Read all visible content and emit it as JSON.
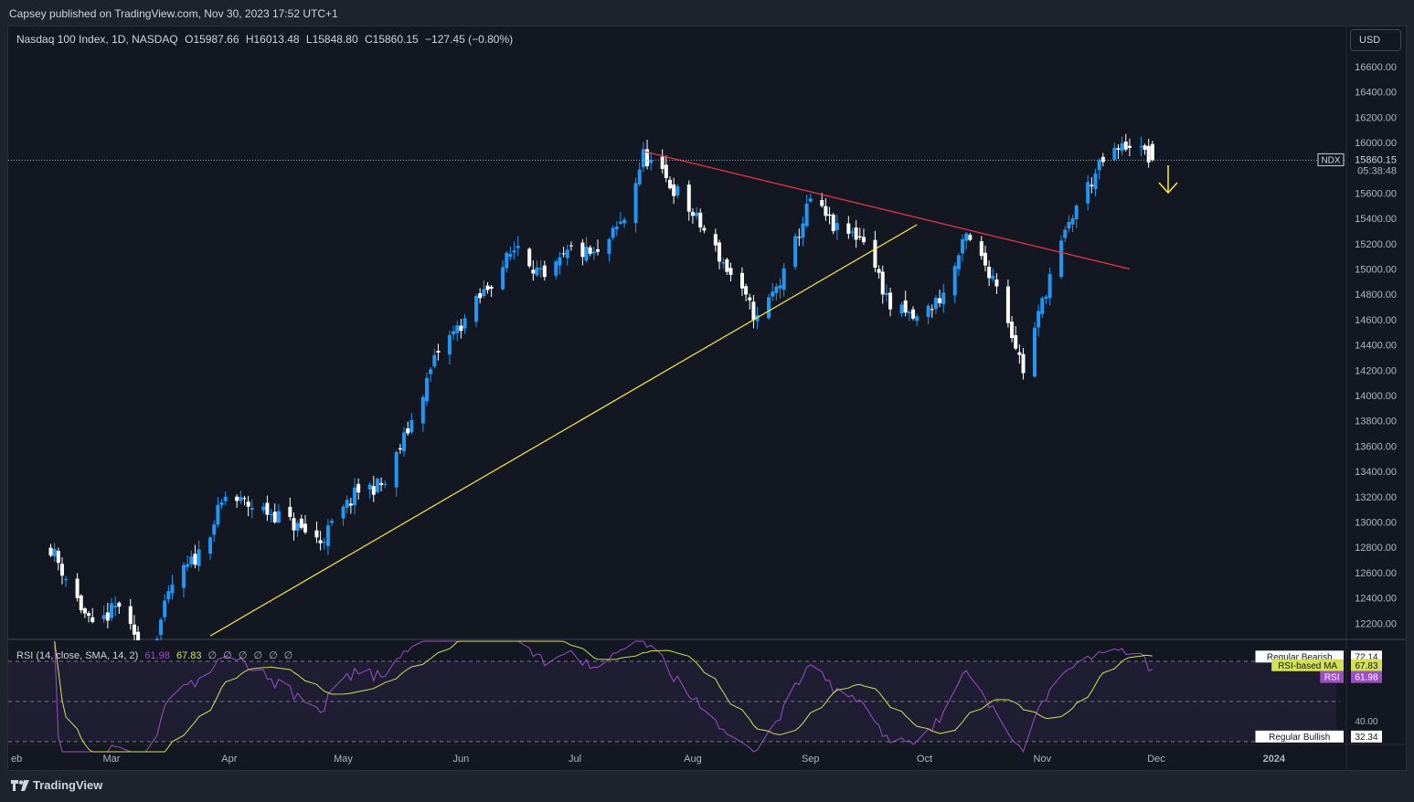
{
  "header": {
    "published_line": "Capsey published on TradingView.com, Nov 30, 2023 17:52 UTC+1"
  },
  "legend": {
    "symbol": "Nasdaq 100 Index, 1D, NASDAQ",
    "open": "O15987.66",
    "high": "H16013.48",
    "low": "L15848.80",
    "close": "C15860.15",
    "change": "−127.45 (−0.80%)"
  },
  "currency": "USD",
  "price_label": {
    "ticker": "NDX",
    "price": "15860.15",
    "countdown": "05:38:48"
  },
  "rsi_legend": {
    "title": "RSI (14, close, SMA, 14, 2)",
    "rsi_value": "61.98",
    "ma_value": "67.83",
    "na_marks": "∅ ∅ ∅ ∅ ∅ ∅"
  },
  "rsi_labels": {
    "regular_bearish": "Regular Bearish",
    "regular_bearish_value": "72.14",
    "rsi_ma_label": "RSI-based MA",
    "rsi_ma_value": "67.83",
    "rsi_label": "RSI",
    "rsi_value": "61.98",
    "level_40": "40.00",
    "regular_bullish": "Regular Bullish",
    "regular_bullish_value": "32.34"
  },
  "footer": {
    "brand": "TradingView"
  },
  "colors": {
    "up": "#2196f3",
    "down": "#ffffff",
    "resistance": "#f23645",
    "support": "#ffeb3b",
    "rsi": "#9c4fc4",
    "rsi_ma": "#d4e157",
    "arrow": "#ffeb3b"
  },
  "chart_data": {
    "type": "candlestick",
    "symbol": "NDX",
    "price_axis": {
      "ticks": [
        12200,
        12400,
        12600,
        12800,
        13000,
        13200,
        13400,
        13600,
        13800,
        14000,
        14200,
        14400,
        14600,
        14800,
        15000,
        15200,
        15400,
        15600,
        15800,
        16000,
        16200,
        16400,
        16600
      ],
      "tick_labels": [
        "12200.00",
        "12400.00",
        "12600.00",
        "12800.00",
        "13000.00",
        "13200.00",
        "13400.00",
        "13600.00",
        "13800.00",
        "14000.00",
        "14200.00",
        "14400.00",
        "14600.00",
        "14800.00",
        "15000.00",
        "15200.00",
        "15400.00",
        "15600.00",
        "15800.00",
        "16000.00",
        "16200.00",
        "16400.00",
        "16600.00"
      ]
    },
    "time_axis": {
      "labels": [
        "eb",
        "Mar",
        "Apr",
        "May",
        "Jun",
        "Jul",
        "Aug",
        "Sep",
        "Oct",
        "Nov",
        "Dec",
        "2024"
      ]
    },
    "last_price": 15860.15,
    "close_path": [
      {
        "date": "2023-02-13",
        "close": 12800
      },
      {
        "date": "2023-02-24",
        "close": 12150
      },
      {
        "date": "2023-03-03",
        "close": 12350
      },
      {
        "date": "2023-03-10",
        "close": 11850
      },
      {
        "date": "2023-03-17",
        "close": 12500
      },
      {
        "date": "2023-03-24",
        "close": 12750
      },
      {
        "date": "2023-03-31",
        "close": 13200
      },
      {
        "date": "2023-04-14",
        "close": 13050
      },
      {
        "date": "2023-04-25",
        "close": 12850
      },
      {
        "date": "2023-05-05",
        "close": 13250
      },
      {
        "date": "2023-05-12",
        "close": 13300
      },
      {
        "date": "2023-05-19",
        "close": 13800
      },
      {
        "date": "2023-05-26",
        "close": 14350
      },
      {
        "date": "2023-06-02",
        "close": 14600
      },
      {
        "date": "2023-06-16",
        "close": 15200
      },
      {
        "date": "2023-06-23",
        "close": 14900
      },
      {
        "date": "2023-06-30",
        "close": 15150
      },
      {
        "date": "2023-07-07",
        "close": 15100
      },
      {
        "date": "2023-07-14",
        "close": 15400
      },
      {
        "date": "2023-07-19",
        "close": 15900
      },
      {
        "date": "2023-07-28",
        "close": 15600
      },
      {
        "date": "2023-08-04",
        "close": 15300
      },
      {
        "date": "2023-08-18",
        "close": 14600
      },
      {
        "date": "2023-08-25",
        "close": 14950
      },
      {
        "date": "2023-09-01",
        "close": 15550
      },
      {
        "date": "2023-09-08",
        "close": 15300
      },
      {
        "date": "2023-09-15",
        "close": 15250
      },
      {
        "date": "2023-09-22",
        "close": 14700
      },
      {
        "date": "2023-09-29",
        "close": 14600
      },
      {
        "date": "2023-10-06",
        "close": 14800
      },
      {
        "date": "2023-10-12",
        "close": 15250
      },
      {
        "date": "2023-10-20",
        "close": 14900
      },
      {
        "date": "2023-10-27",
        "close": 14200
      },
      {
        "date": "2023-11-03",
        "close": 14950
      },
      {
        "date": "2023-11-10",
        "close": 15500
      },
      {
        "date": "2023-11-17",
        "close": 15850
      },
      {
        "date": "2023-11-24",
        "close": 16000
      },
      {
        "date": "2023-11-30",
        "close": 15860.15
      }
    ],
    "trendlines": [
      {
        "name": "resistance",
        "start": {
          "date": "2023-07-19",
          "price": 15930
        },
        "end": {
          "date": "2023-11-24",
          "price": 15000
        }
      },
      {
        "name": "support",
        "start": {
          "date": "2023-03-27",
          "price": 12100
        },
        "end": {
          "date": "2023-09-29",
          "price": 15350
        }
      }
    ],
    "rsi_panel": {
      "levels": [
        72.14,
        67.83,
        61.98,
        40.0,
        32.34
      ],
      "dashed_levels": [
        70,
        50,
        30
      ]
    }
  }
}
